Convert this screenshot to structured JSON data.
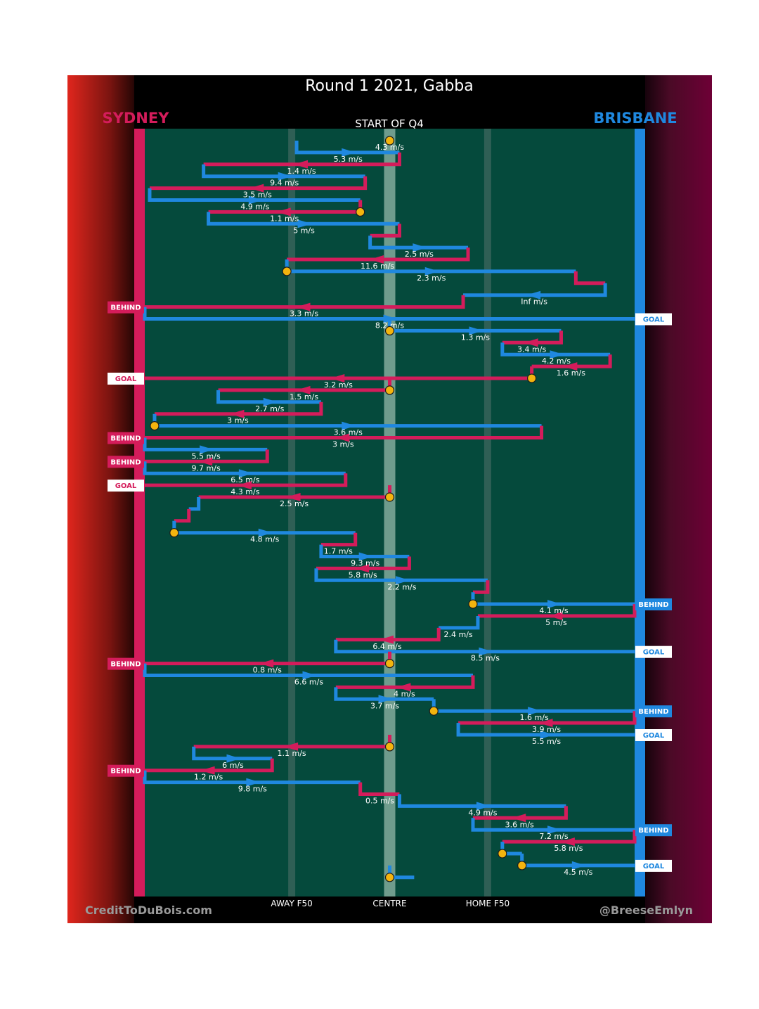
{
  "chart_data": {
    "type": "line",
    "title": "Round 1 2021, Gabba",
    "subtitle": "START OF Q4",
    "teams": {
      "home": {
        "name": "BRISBANE",
        "color": "#1f88df"
      },
      "away": {
        "name": "SYDNEY",
        "color": "#d41c5b"
      }
    },
    "x_axis": {
      "labels": [
        {
          "text": "AWAY F50",
          "x": 0.3
        },
        {
          "text": "CENTRE",
          "x": 0.5
        },
        {
          "text": "HOME F50",
          "x": 0.7
        }
      ]
    },
    "credits": {
      "left": "CreditToDuBois.com",
      "right": "@BreeseEmlyn"
    },
    "colors": {
      "field": "#054a3c",
      "centre_band": "#6f9c8d",
      "line_band": "#2f5f55",
      "ball": "#f3b40e"
    },
    "chains": [
      {
        "team": "away",
        "turn": 0.31,
        "start": 0.5,
        "end": 0.5,
        "speed": "4.3 m/s",
        "marker": "bounce"
      },
      {
        "team": "home",
        "turn": 0.52,
        "start": 0.31,
        "end": 0.52,
        "speed": "5.3 m/s"
      },
      {
        "team": "away",
        "turn": 0.12,
        "start": 0.52,
        "end": 0.12,
        "speed": "1.4 m/s"
      },
      {
        "team": "home",
        "turn": 0.45,
        "start": 0.12,
        "end": 0.45,
        "speed": "9.4 m/s"
      },
      {
        "team": "away",
        "turn": 0.01,
        "start": 0.45,
        "end": 0.01,
        "speed": "3.5 m/s"
      },
      {
        "team": "home",
        "turn": 0.44,
        "start": 0.01,
        "end": 0.44,
        "speed": "4.9 m/s"
      },
      {
        "team": "away",
        "turn": 0.13,
        "start": 0.44,
        "end": 0.13,
        "speed": "1.1 m/s",
        "marker": "bounce"
      },
      {
        "team": "home",
        "turn": 0.52,
        "start": 0.13,
        "end": 0.52,
        "speed": "5 m/s"
      },
      {
        "team": "away",
        "turn": 0.46,
        "start": 0.52,
        "end": 0.46,
        "speed": ""
      },
      {
        "team": "home",
        "turn": 0.66,
        "start": 0.46,
        "end": 0.66,
        "speed": "2.5 m/s"
      },
      {
        "team": "away",
        "turn": 0.29,
        "start": 0.66,
        "end": 0.29,
        "speed": "11.6 m/s"
      },
      {
        "team": "home",
        "turn": 0.88,
        "start": 0.29,
        "end": 0.88,
        "speed": "2.3 m/s",
        "marker": "bounce"
      },
      {
        "team": "away",
        "turn": 0.94,
        "start": 0.88,
        "end": 0.94,
        "speed": ""
      },
      {
        "team": "home",
        "turn": 0.65,
        "start": 0.94,
        "end": 0.65,
        "speed": "Inf m/s"
      },
      {
        "team": "away",
        "turn": 0.0,
        "start": 0.65,
        "end": 0.0,
        "speed": "3.3 m/s",
        "result": "BEHIND"
      },
      {
        "team": "home",
        "turn": 1.0,
        "start": 0.0,
        "end": 1.0,
        "speed": "8.2 m/s",
        "result": "GOAL"
      },
      {
        "team": "home",
        "turn": 0.85,
        "start": 0.5,
        "end": 0.85,
        "speed": "1.3 m/s",
        "marker": "bounce"
      },
      {
        "team": "away",
        "turn": 0.73,
        "start": 0.85,
        "end": 0.73,
        "speed": "3.4 m/s"
      },
      {
        "team": "home",
        "turn": 0.95,
        "start": 0.73,
        "end": 0.95,
        "speed": "4.2 m/s"
      },
      {
        "team": "away",
        "turn": 0.79,
        "start": 0.95,
        "end": 0.79,
        "speed": "1.6 m/s"
      },
      {
        "team": "away",
        "turn": 0.0,
        "start": 0.79,
        "end": 0.0,
        "speed": "3.2 m/s",
        "result": "GOAL",
        "marker": "bounce"
      },
      {
        "team": "away",
        "turn": 0.15,
        "start": 0.5,
        "end": 0.15,
        "speed": "1.5 m/s",
        "marker": "bounce"
      },
      {
        "team": "home",
        "turn": 0.36,
        "start": 0.15,
        "end": 0.36,
        "speed": "2.7 m/s"
      },
      {
        "team": "away",
        "turn": 0.02,
        "start": 0.36,
        "end": 0.02,
        "speed": "3 m/s"
      },
      {
        "team": "home",
        "turn": 0.81,
        "start": 0.02,
        "end": 0.81,
        "speed": "3.6 m/s",
        "marker": "bounce"
      },
      {
        "team": "away",
        "turn": 0.0,
        "start": 0.81,
        "end": 0.0,
        "speed": "3 m/s",
        "result": "BEHIND"
      },
      {
        "team": "home",
        "turn": 0.25,
        "start": 0.0,
        "end": 0.25,
        "speed": "5.5 m/s"
      },
      {
        "team": "away",
        "turn": 0.0,
        "start": 0.25,
        "end": 0.0,
        "speed": "9.7 m/s",
        "result": "BEHIND"
      },
      {
        "team": "home",
        "turn": 0.41,
        "start": 0.0,
        "end": 0.41,
        "speed": "6.5 m/s"
      },
      {
        "team": "away",
        "turn": 0.0,
        "start": 0.41,
        "end": 0.0,
        "speed": "4.3 m/s",
        "result": "GOAL"
      },
      {
        "team": "away",
        "turn": 0.11,
        "start": 0.5,
        "end": 0.11,
        "speed": "2.5 m/s",
        "marker": "bounce"
      },
      {
        "team": "home",
        "turn": 0.09,
        "start": 0.11,
        "end": 0.09,
        "speed": ""
      },
      {
        "team": "away",
        "turn": 0.06,
        "start": 0.09,
        "end": 0.06,
        "speed": ""
      },
      {
        "team": "home",
        "turn": 0.43,
        "start": 0.06,
        "end": 0.43,
        "speed": "4.8 m/s",
        "marker": "bounce"
      },
      {
        "team": "away",
        "turn": 0.36,
        "start": 0.43,
        "end": 0.36,
        "speed": "1.7 m/s"
      },
      {
        "team": "home",
        "turn": 0.54,
        "start": 0.36,
        "end": 0.54,
        "speed": "9.3 m/s"
      },
      {
        "team": "away",
        "turn": 0.35,
        "start": 0.54,
        "end": 0.35,
        "speed": "5.8 m/s"
      },
      {
        "team": "home",
        "turn": 0.7,
        "start": 0.35,
        "end": 0.7,
        "speed": "2.2 m/s"
      },
      {
        "team": "away",
        "turn": 0.67,
        "start": 0.7,
        "end": 0.67,
        "speed": ""
      },
      {
        "team": "home",
        "turn": 1.0,
        "start": 0.67,
        "end": 1.0,
        "speed": "4.1 m/s",
        "result": "BEHIND",
        "marker": "bounce"
      },
      {
        "team": "away",
        "turn": 0.68,
        "start": 1.0,
        "end": 0.68,
        "speed": "5 m/s"
      },
      {
        "team": "home",
        "turn": 0.6,
        "start": 0.68,
        "end": 0.6,
        "speed": "2.4 m/s"
      },
      {
        "team": "away",
        "turn": 0.39,
        "start": 0.6,
        "end": 0.39,
        "speed": "6.4 m/s"
      },
      {
        "team": "home",
        "turn": 1.0,
        "start": 0.39,
        "end": 1.0,
        "speed": "8.5 m/s",
        "result": "GOAL"
      },
      {
        "team": "away",
        "turn": 0.0,
        "start": 0.5,
        "end": 0.0,
        "speed": "0.8 m/s",
        "result": "BEHIND",
        "marker": "bounce"
      },
      {
        "team": "home",
        "turn": 0.67,
        "start": 0.0,
        "end": 0.67,
        "speed": "6.6 m/s"
      },
      {
        "team": "away",
        "turn": 0.39,
        "start": 0.67,
        "end": 0.39,
        "speed": "4 m/s"
      },
      {
        "team": "home",
        "turn": 0.59,
        "start": 0.39,
        "end": 0.59,
        "speed": "3.7 m/s"
      },
      {
        "team": "home",
        "turn": 1.0,
        "start": 0.59,
        "end": 1.0,
        "speed": "1.6 m/s",
        "result": "BEHIND",
        "marker": "bounce"
      },
      {
        "team": "away",
        "turn": 0.64,
        "start": 1.0,
        "end": 0.64,
        "speed": "3.9 m/s"
      },
      {
        "team": "home",
        "turn": 1.0,
        "start": 0.64,
        "end": 1.0,
        "speed": "5.5 m/s",
        "result": "GOAL"
      },
      {
        "team": "away",
        "turn": 0.1,
        "start": 0.5,
        "end": 0.1,
        "speed": "1.1 m/s",
        "marker": "bounce"
      },
      {
        "team": "home",
        "turn": 0.26,
        "start": 0.1,
        "end": 0.26,
        "speed": "6 m/s"
      },
      {
        "team": "away",
        "turn": 0.0,
        "start": 0.26,
        "end": 0.0,
        "speed": "1.2 m/s",
        "result": "BEHIND"
      },
      {
        "team": "home",
        "turn": 0.44,
        "start": 0.0,
        "end": 0.44,
        "speed": "9.8 m/s"
      },
      {
        "team": "away",
        "turn": 0.52,
        "start": 0.44,
        "end": 0.52,
        "speed": "0.5 m/s"
      },
      {
        "team": "home",
        "turn": 0.86,
        "start": 0.52,
        "end": 0.86,
        "speed": "4.9 m/s"
      },
      {
        "team": "away",
        "turn": 0.67,
        "start": 0.86,
        "end": 0.67,
        "speed": "3.6 m/s"
      },
      {
        "team": "home",
        "turn": 1.0,
        "start": 0.67,
        "end": 1.0,
        "speed": "7.2 m/s",
        "result": "BEHIND"
      },
      {
        "team": "away",
        "turn": 0.73,
        "start": 1.0,
        "end": 0.73,
        "speed": "5.8 m/s"
      },
      {
        "team": "home",
        "turn": 0.77,
        "start": 0.73,
        "end": 0.77,
        "speed": "",
        "marker": "bounce"
      },
      {
        "team": "home",
        "turn": 1.0,
        "start": 0.77,
        "end": 1.0,
        "speed": "4.5 m/s",
        "result": "GOAL",
        "marker": "bounce"
      },
      {
        "team": "home",
        "turn": 0.55,
        "start": 0.5,
        "end": 0.55,
        "speed": "",
        "marker": "bounce"
      }
    ]
  }
}
